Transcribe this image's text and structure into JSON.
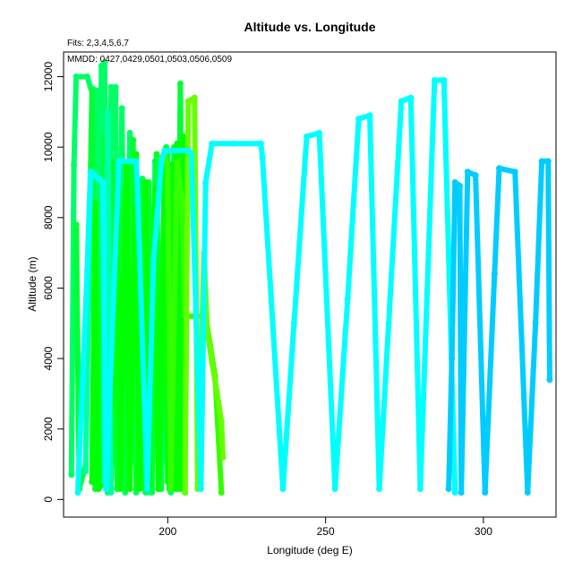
{
  "chart_data": {
    "type": "line",
    "title": "Altitude vs. Longitude",
    "subtitle": "Fits: 2,3,4,5,6,7",
    "annotation": "MMDD: 0427,0429,0501,0503,0506,0509",
    "xlabel": "Longitude (deg E)",
    "ylabel": "Altitude (m)",
    "xlim": [
      167,
      323
    ],
    "ylim": [
      -500,
      12700
    ],
    "xticks": [
      200,
      250,
      300
    ],
    "yticks": [
      0,
      2000,
      4000,
      6000,
      8000,
      10000,
      12000
    ],
    "grid": false,
    "legend": "none",
    "series": [
      {
        "color": "#00FF66",
        "points": [
          [
            169.5,
            700
          ],
          [
            170.3,
            9500
          ],
          [
            171,
            12000
          ],
          [
            174.5,
            12000
          ],
          [
            175.5,
            11700
          ],
          [
            177.5,
            11600
          ],
          [
            178,
            300
          ],
          [
            179,
            12300
          ],
          [
            180,
            12400
          ],
          [
            181,
            200
          ],
          [
            182,
            11700
          ],
          [
            183.5,
            11700
          ],
          [
            184,
            300
          ],
          [
            185.5,
            11100
          ],
          [
            186.5,
            200
          ],
          [
            188,
            10400
          ],
          [
            189,
            9700
          ],
          [
            190,
            200
          ],
          [
            192,
            9100
          ],
          [
            193,
            200
          ],
          [
            195,
            200
          ],
          [
            196,
            9600
          ],
          [
            197,
            300
          ],
          [
            198,
            300
          ],
          [
            200,
            9800
          ],
          [
            201,
            200
          ]
        ]
      },
      {
        "color": "#00FF33",
        "points": [
          [
            171,
            7800
          ],
          [
            172,
            300
          ],
          [
            174,
            1000
          ],
          [
            176,
            11600
          ],
          [
            177,
            300
          ],
          [
            178.5,
            600
          ],
          [
            180,
            10200
          ],
          [
            181,
            300
          ],
          [
            182.5,
            9600
          ],
          [
            184,
            300
          ],
          [
            186,
            8800
          ],
          [
            187,
            300
          ],
          [
            189,
            10200
          ],
          [
            190,
            300
          ],
          [
            191.5,
            9000
          ],
          [
            192.5,
            300
          ],
          [
            194,
            9000
          ],
          [
            195,
            300
          ],
          [
            196.5,
            9800
          ],
          [
            197.5,
            300
          ],
          [
            199.5,
            10000
          ],
          [
            200.5,
            300
          ],
          [
            202,
            10000
          ],
          [
            203,
            300
          ],
          [
            204,
            11800
          ],
          [
            205,
            300
          ]
        ]
      },
      {
        "color": "#00FF00",
        "points": [
          [
            176,
            500
          ],
          [
            177,
            8400
          ],
          [
            178,
            300
          ],
          [
            180,
            500
          ],
          [
            181,
            8000
          ],
          [
            182,
            300
          ],
          [
            184,
            9000
          ],
          [
            185,
            300
          ],
          [
            187,
            9500
          ],
          [
            188,
            300
          ],
          [
            190,
            9800
          ],
          [
            191,
            300
          ],
          [
            193,
            9000
          ],
          [
            194,
            400
          ],
          [
            196,
            8800
          ],
          [
            197,
            300
          ],
          [
            199,
            9500
          ],
          [
            200,
            500
          ],
          [
            201.5,
            9500
          ],
          [
            202.5,
            300
          ],
          [
            203,
            10100
          ],
          [
            204,
            300
          ],
          [
            205,
            10300
          ],
          [
            205.5,
            200
          ]
        ]
      },
      {
        "color": "#33FF00",
        "points": [
          [
            198,
            9700
          ],
          [
            199,
            9800
          ],
          [
            200,
            9400
          ],
          [
            201,
            300
          ],
          [
            203,
            9600
          ],
          [
            204.5,
            8500
          ],
          [
            205.5,
            5200
          ],
          [
            212,
            5200
          ],
          [
            215,
            3500
          ],
          [
            217,
            200
          ]
        ]
      },
      {
        "color": "#66FF00",
        "points": [
          [
            205.5,
            200
          ],
          [
            206.5,
            11300
          ],
          [
            208.5,
            11400
          ],
          [
            209.5,
            300
          ],
          [
            211.5,
            7000
          ],
          [
            212.5,
            4800
          ],
          [
            214,
            3900
          ],
          [
            215.5,
            3100
          ],
          [
            217,
            2200
          ],
          [
            217.5,
            1200
          ]
        ]
      },
      {
        "color": "#00FFAA",
        "points": [
          [
            174,
            800
          ],
          [
            175.5,
            9000
          ],
          [
            176,
            9300
          ],
          [
            178.5,
            9100
          ],
          [
            179.5,
            9000
          ],
          [
            180,
            500
          ],
          [
            181,
            11000
          ],
          [
            182,
            200
          ]
        ]
      },
      {
        "color": "#00FFFF",
        "points": [
          [
            171.5,
            200
          ],
          [
            174.5,
            6500
          ],
          [
            175.5,
            9300
          ],
          [
            178,
            9100
          ],
          [
            179.5,
            9000
          ],
          [
            180.5,
            300
          ],
          [
            184.5,
            9600
          ],
          [
            190,
            9600
          ],
          [
            190.5,
            8500
          ],
          [
            193.5,
            300
          ],
          [
            195.5,
            6800
          ],
          [
            198,
            9600
          ],
          [
            199,
            9900
          ],
          [
            206.5,
            9900
          ],
          [
            207.5,
            9800
          ],
          [
            210.5,
            300
          ],
          [
            212,
            9000
          ],
          [
            214,
            10100
          ],
          [
            221,
            10100
          ],
          [
            229.5,
            10100
          ],
          [
            230,
            9700
          ],
          [
            236.5,
            300
          ],
          [
            240,
            5000
          ],
          [
            244,
            10300
          ],
          [
            248,
            10400
          ],
          [
            253,
            300
          ],
          [
            257,
            5700
          ],
          [
            260.5,
            10800
          ],
          [
            264,
            10900
          ],
          [
            267,
            300
          ],
          [
            270,
            5000
          ],
          [
            274,
            11300
          ],
          [
            277,
            11400
          ],
          [
            280,
            300
          ],
          [
            284.5,
            11900
          ],
          [
            287.5,
            11900
          ],
          [
            291,
            200
          ]
        ]
      },
      {
        "color": "#00CCFF",
        "points": [
          [
            289,
            300
          ],
          [
            290,
            4000
          ],
          [
            291,
            9000
          ],
          [
            292.5,
            8900
          ],
          [
            293,
            200
          ],
          [
            295,
            9300
          ],
          [
            297.5,
            9200
          ],
          [
            300.5,
            200
          ],
          [
            303.5,
            6400
          ],
          [
            305,
            9400
          ],
          [
            310,
            9300
          ],
          [
            314,
            200
          ],
          [
            316.5,
            5000
          ],
          [
            318.5,
            9600
          ],
          [
            320.5,
            9600
          ],
          [
            321,
            3400
          ]
        ]
      }
    ]
  }
}
